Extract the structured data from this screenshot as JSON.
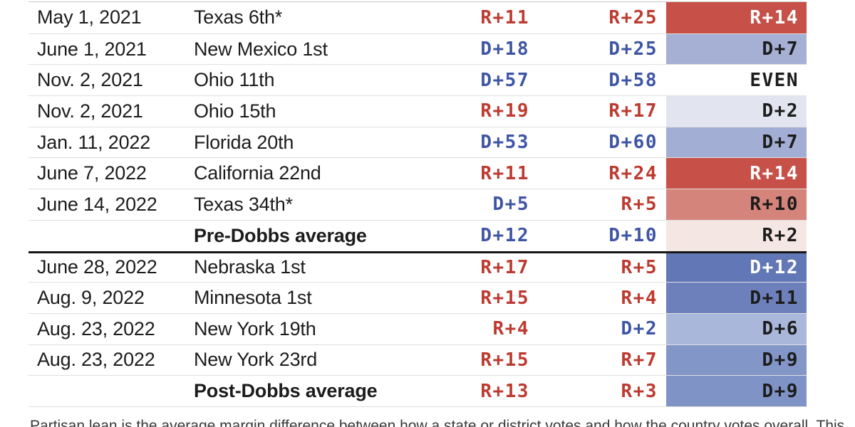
{
  "colors": {
    "red_text": "#bd3a30",
    "blue_text": "#3e55a5",
    "dark_text": "#1c1c1c",
    "white_text": "#ffffff",
    "section_divider": "#161616",
    "row_divider": "#e0e0e0"
  },
  "table": {
    "rows": [
      {
        "date": "May 1, 2021",
        "district": "Texas 6th*",
        "m1": "R+11",
        "m1_party": "R",
        "m2": "R+25",
        "m2_party": "R",
        "m3": "R+14",
        "m3_bg": "#c75149",
        "m3_text": "#ffffff",
        "bold": false,
        "section_start": false
      },
      {
        "date": "June 1, 2021",
        "district": "New Mexico 1st",
        "m1": "D+18",
        "m1_party": "D",
        "m2": "D+25",
        "m2_party": "D",
        "m3": "D+7",
        "m3_bg": "#a5b0d4",
        "m3_text": "#1c1c1c",
        "bold": false,
        "section_start": false
      },
      {
        "date": "Nov. 2, 2021",
        "district": "Ohio 11th",
        "m1": "D+57",
        "m1_party": "D",
        "m2": "D+58",
        "m2_party": "D",
        "m3": "EVEN",
        "m3_bg": "#ffffff",
        "m3_text": "#1c1c1c",
        "bold": false,
        "section_start": false
      },
      {
        "date": "Nov. 2, 2021",
        "district": "Ohio 15th",
        "m1": "R+19",
        "m1_party": "R",
        "m2": "R+17",
        "m2_party": "R",
        "m3": "D+2",
        "m3_bg": "#e2e5ef",
        "m3_text": "#1c1c1c",
        "bold": false,
        "section_start": false
      },
      {
        "date": "Jan. 11, 2022",
        "district": "Florida 20th",
        "m1": "D+53",
        "m1_party": "D",
        "m2": "D+60",
        "m2_party": "D",
        "m3": "D+7",
        "m3_bg": "#a2aed4",
        "m3_text": "#1c1c1c",
        "bold": false,
        "section_start": false
      },
      {
        "date": "June 7, 2022",
        "district": "California 22nd",
        "m1": "R+11",
        "m1_party": "R",
        "m2": "R+24",
        "m2_party": "R",
        "m3": "R+14",
        "m3_bg": "#c75149",
        "m3_text": "#ffffff",
        "bold": false,
        "section_start": false
      },
      {
        "date": "June 14, 2022",
        "district": "Texas 34th*",
        "m1": "D+5",
        "m1_party": "D",
        "m2": "R+5",
        "m2_party": "R",
        "m3": "R+10",
        "m3_bg": "#d5847c",
        "m3_text": "#1c1c1c",
        "bold": false,
        "section_start": false
      },
      {
        "date": "",
        "district": "Pre-Dobbs average",
        "m1": "D+12",
        "m1_party": "D",
        "m2": "D+10",
        "m2_party": "D",
        "m3": "R+2",
        "m3_bg": "#f4e7e3",
        "m3_text": "#1c1c1c",
        "bold": true,
        "section_start": false
      },
      {
        "date": "June 28, 2022",
        "district": "Nebraska 1st",
        "m1": "R+17",
        "m1_party": "R",
        "m2": "R+5",
        "m2_party": "R",
        "m3": "D+12",
        "m3_bg": "#6277b5",
        "m3_text": "#ffffff",
        "bold": false,
        "section_start": true
      },
      {
        "date": "Aug. 9, 2022",
        "district": "Minnesota 1st",
        "m1": "R+15",
        "m1_party": "R",
        "m2": "R+4",
        "m2_party": "R",
        "m3": "D+11",
        "m3_bg": "#6d80bb",
        "m3_text": "#1c1c1c",
        "bold": false,
        "section_start": false
      },
      {
        "date": "Aug. 23, 2022",
        "district": "New York 19th",
        "m1": "R+4",
        "m1_party": "R",
        "m2": "D+2",
        "m2_party": "D",
        "m3": "D+6",
        "m3_bg": "#a9b7db",
        "m3_text": "#1c1c1c",
        "bold": false,
        "section_start": false
      },
      {
        "date": "Aug. 23, 2022",
        "district": "New York 23rd",
        "m1": "R+15",
        "m1_party": "R",
        "m2": "R+7",
        "m2_party": "R",
        "m3": "D+9",
        "m3_bg": "#8396c8",
        "m3_text": "#1c1c1c",
        "bold": false,
        "section_start": false
      },
      {
        "date": "",
        "district": "Post-Dobbs average",
        "m1": "R+13",
        "m1_party": "R",
        "m2": "R+3",
        "m2_party": "R",
        "m3": "D+9",
        "m3_bg": "#8093c6",
        "m3_text": "#1c1c1c",
        "bold": true,
        "section_start": false
      }
    ]
  },
  "footnote": "Partisan lean is the average margin difference between how a state or district votes and how the country votes overall. This",
  "chart_data": {
    "type": "table",
    "columns": [
      "date",
      "district",
      "margin_a",
      "margin_b",
      "margin_c"
    ],
    "rows": [
      [
        "May 1, 2021",
        "Texas 6th*",
        "R+11",
        "R+25",
        "R+14"
      ],
      [
        "June 1, 2021",
        "New Mexico 1st",
        "D+18",
        "D+25",
        "D+7"
      ],
      [
        "Nov. 2, 2021",
        "Ohio 11th",
        "D+57",
        "D+58",
        "EVEN"
      ],
      [
        "Nov. 2, 2021",
        "Ohio 15th",
        "R+19",
        "R+17",
        "D+2"
      ],
      [
        "Jan. 11, 2022",
        "Florida 20th",
        "D+53",
        "D+60",
        "D+7"
      ],
      [
        "June 7, 2022",
        "California 22nd",
        "R+11",
        "R+24",
        "R+14"
      ],
      [
        "June 14, 2022",
        "Texas 34th*",
        "D+5",
        "R+5",
        "R+10"
      ],
      [
        "",
        "Pre-Dobbs average",
        "D+12",
        "D+10",
        "R+2"
      ],
      [
        "June 28, 2022",
        "Nebraska 1st",
        "R+17",
        "R+5",
        "D+12"
      ],
      [
        "Aug. 9, 2022",
        "Minnesota 1st",
        "R+15",
        "R+4",
        "D+11"
      ],
      [
        "Aug. 23, 2022",
        "New York 19th",
        "R+4",
        "D+2",
        "D+6"
      ],
      [
        "Aug. 23, 2022",
        "New York 23rd",
        "R+15",
        "R+7",
        "D+9"
      ],
      [
        "",
        "Post-Dobbs average",
        "R+13",
        "R+3",
        "D+9"
      ]
    ],
    "sections": {
      "pre_dobbs_rows": [
        0,
        7
      ],
      "post_dobbs_rows": [
        8,
        12
      ]
    },
    "notes": "Swing column cells are shaded red (R shift) or blue (D shift); intensity scales with magnitude."
  }
}
